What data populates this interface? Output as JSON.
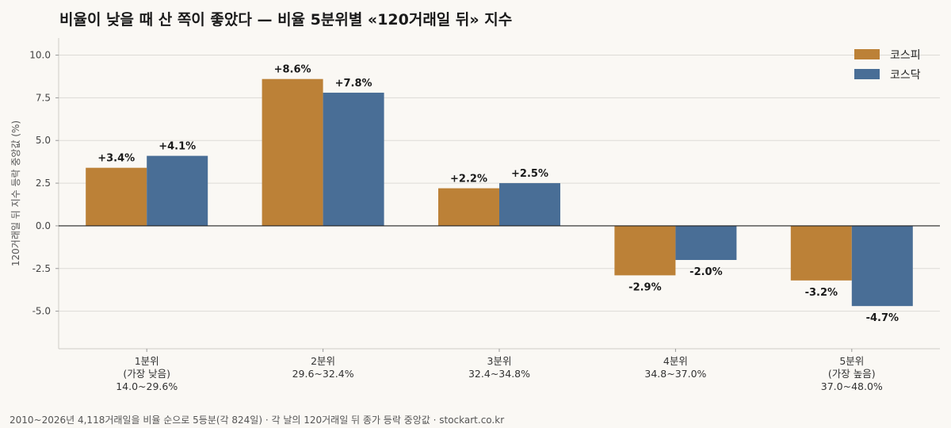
{
  "title": "비율이 낮을 때 산 쪽이 좋았다 — 비율 5분위별 «120거래일 뒤» 지수",
  "footer": "2010~2026년 4,118거래일을 비율 순으로 5등분(각 824일) · 각 날의 120거래일 뒤 종가 등락 중앙값 · stockart.co.kr",
  "colors": {
    "kospi": "#bc8137",
    "kosdaq": "#496e96",
    "grid": "#dddbd6",
    "zero": "#222222"
  },
  "chart_data": {
    "type": "bar",
    "categories": [
      [
        "1분위",
        "(가장 낮음)",
        "14.0~29.6%"
      ],
      [
        "2분위",
        "29.6~32.4%"
      ],
      [
        "3분위",
        "32.4~34.8%"
      ],
      [
        "4분위",
        "34.8~37.0%"
      ],
      [
        "5분위",
        "(가장 높음)",
        "37.0~48.0%"
      ]
    ],
    "series": [
      {
        "name": "코스피",
        "color": "#bc8137",
        "values": [
          3.4,
          8.6,
          2.2,
          -2.9,
          -3.2
        ],
        "labels": [
          "+3.4%",
          "+8.6%",
          "+2.2%",
          "-2.9%",
          "-3.2%"
        ]
      },
      {
        "name": "코스닥",
        "color": "#496e96",
        "values": [
          4.1,
          7.8,
          2.5,
          -2.0,
          -4.7
        ],
        "labels": [
          "+4.1%",
          "+7.8%",
          "+2.5%",
          "-2.0%",
          "-4.7%"
        ]
      }
    ],
    "ylabel": "120거래일 뒤 지수 등락 중앙값 (%)",
    "ylim": [
      -7.2,
      11.0
    ],
    "yticks": [
      10.0,
      7.5,
      5.0,
      2.5,
      0.0,
      -2.5,
      -5.0
    ],
    "ytick_labels": [
      "10.0",
      "7.5",
      "5.0",
      "2.5",
      "0.0",
      "-2.5",
      "-5.0"
    ],
    "grid": true,
    "legend_position": "top-right"
  }
}
